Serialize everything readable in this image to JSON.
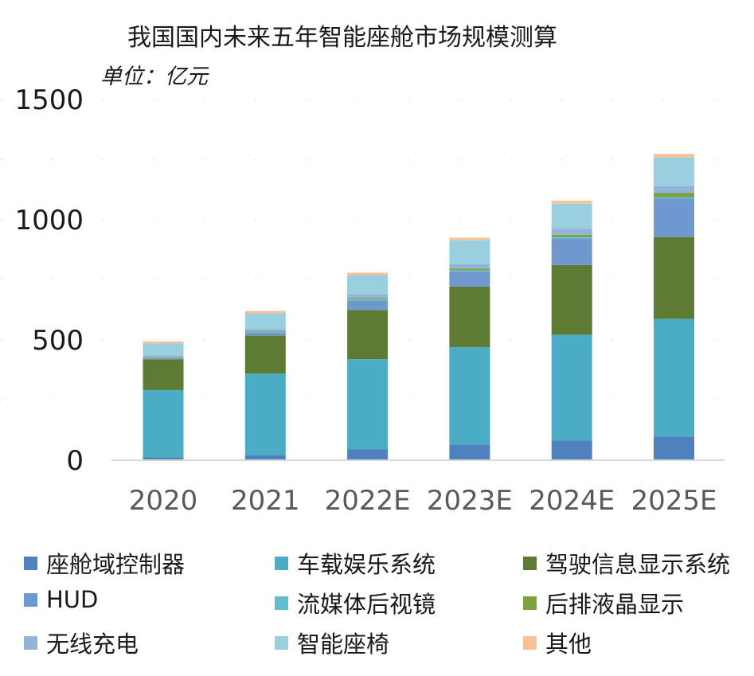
{
  "chart_data": {
    "type": "bar",
    "stacked": true,
    "title": "我国国内未来五年智能座舱市场规模测算",
    "unit_label": "单位：亿元",
    "categories": [
      "2020",
      "2021",
      "2022E",
      "2023E",
      "2024E",
      "2025E"
    ],
    "ylim": [
      0,
      1500
    ],
    "yticks": [
      "0",
      "500",
      "1000",
      "1500"
    ],
    "grid": true,
    "legend_position": "bottom",
    "series": [
      {
        "name": "座舱域控制器",
        "color": "#4f81bd",
        "values": [
          12,
          20,
          45,
          65,
          82,
          98
        ]
      },
      {
        "name": "车载娱乐系统",
        "color": "#4bacc6",
        "values": [
          280,
          340,
          375,
          405,
          440,
          490
        ]
      },
      {
        "name": "驾驶信息显示系统",
        "color": "#5e7b33",
        "values": [
          128,
          158,
          205,
          252,
          290,
          340
        ]
      },
      {
        "name": "HUD",
        "color": "#6f98cf",
        "values": [
          4,
          12,
          40,
          62,
          110,
          160
        ]
      },
      {
        "name": "流媒体后视镜",
        "color": "#62bdd0",
        "values": [
          2,
          3,
          5,
          6,
          6,
          6
        ]
      },
      {
        "name": "后排液晶显示",
        "color": "#7ca23c",
        "values": [
          3,
          3,
          5,
          7,
          10,
          17
        ]
      },
      {
        "name": "无线充电",
        "color": "#94b3d8",
        "values": [
          7,
          10,
          15,
          18,
          24,
          28
        ]
      },
      {
        "name": "智能座椅",
        "color": "#98d0e0",
        "values": [
          50,
          65,
          80,
          100,
          105,
          120
        ]
      },
      {
        "name": "其他",
        "color": "#f9c194",
        "values": [
          8,
          10,
          10,
          10,
          12,
          15
        ]
      }
    ]
  }
}
